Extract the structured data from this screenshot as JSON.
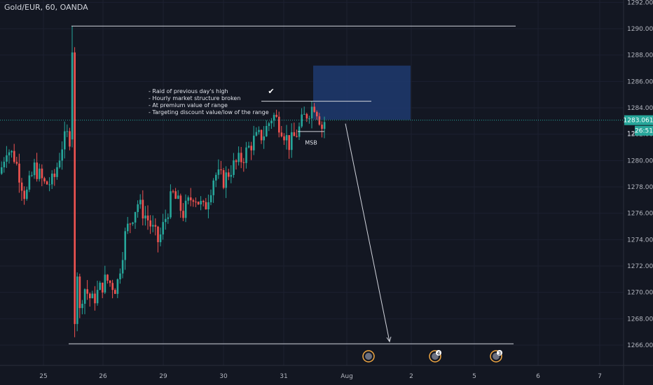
{
  "header": {
    "symbol_title": "Gold/EUR, 60, OANDA"
  },
  "annotation": {
    "lines": [
      "- Raid of previous day's high",
      "- Hourly market structure broken",
      "- At premium value of range",
      "- Targeting discount value/low of the range"
    ],
    "check_mark": "✔",
    "msb_label": "MSB"
  },
  "price_axis": {
    "current_price": "1283.061",
    "countdown": "26:51",
    "partial_label": "12"
  },
  "events": [
    {
      "icon": "event-icon",
      "count": ""
    },
    {
      "icon": "event-icon",
      "count": "4"
    },
    {
      "icon": "event-icon",
      "count": "3"
    }
  ],
  "colors": {
    "background": "#131722",
    "up": "#26a69a",
    "down": "#ef5350",
    "zone": "#1e3a6e",
    "current_price": "#26a69a"
  },
  "chart_data": {
    "type": "candlestick",
    "title": "Gold/EUR, 60, OANDA",
    "ylim": [
      1265,
      1292
    ],
    "y_ticks": [
      "1266.000",
      "1268.000",
      "1270.000",
      "1272.000",
      "1274.000",
      "1276.000",
      "1278.000",
      "1280.000",
      "1282.000",
      "1284.000",
      "1286.000",
      "1288.000",
      "1290.000",
      "1292.000"
    ],
    "x_ticks": [
      "25",
      "26",
      "29",
      "30",
      "31",
      "Aug",
      "2",
      "5",
      "6",
      "7"
    ],
    "levels": {
      "high": 1290.2,
      "low": 1266.1,
      "previous_day_high": 1284.5
    },
    "zone": {
      "top": 1287.2,
      "bottom": 1283.1
    },
    "current_price": 1283.061,
    "projection": {
      "from": 1282.8,
      "to": 1266.1
    }
  }
}
